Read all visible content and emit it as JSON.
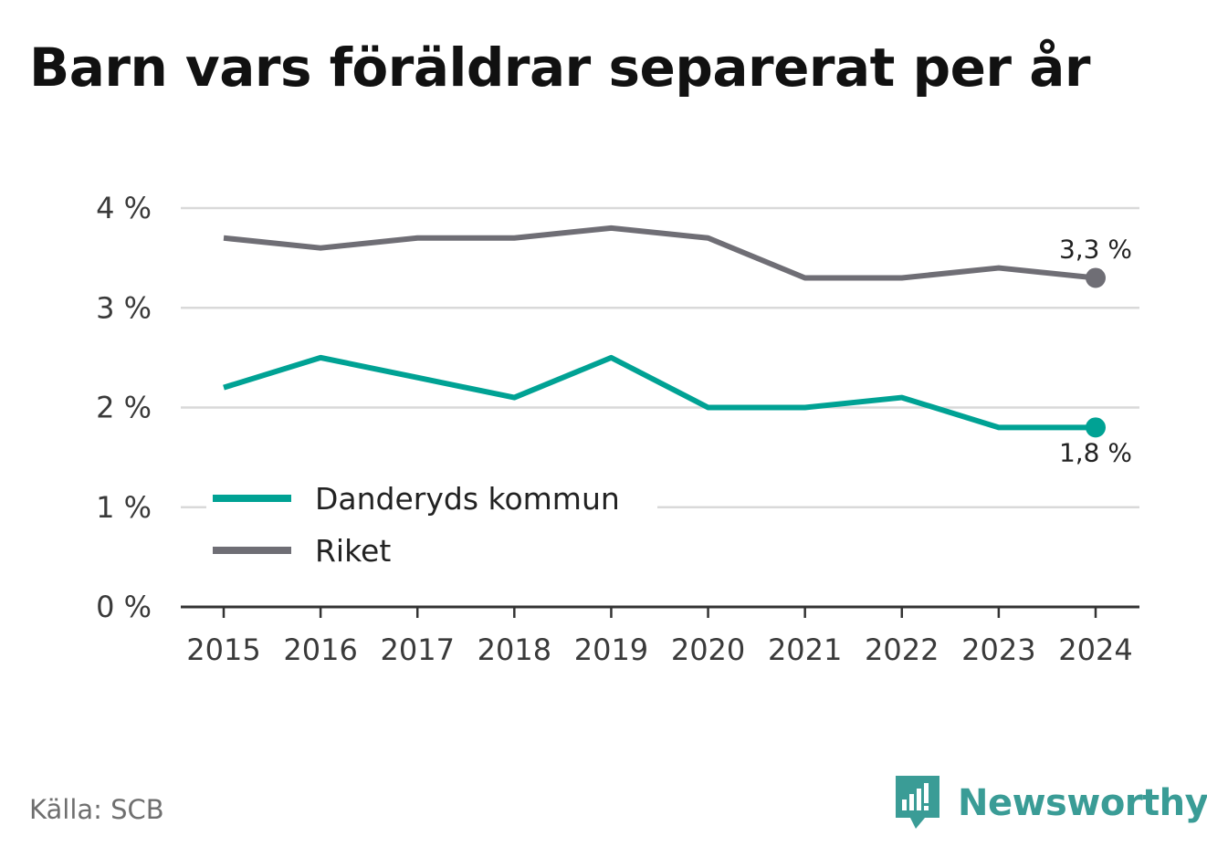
{
  "title": "Barn vars föräldrar separerat per år",
  "source": "Källa: SCB",
  "brand": {
    "name": "Newsworthy",
    "icon": "newsworthy-logo-icon",
    "color": "#3a9c96"
  },
  "colors": {
    "danderyd": "#00a294",
    "riket": "#6f6e75",
    "grid": "#d9d9d9",
    "axis": "#333333"
  },
  "chart_data": {
    "type": "line",
    "title": "Barn vars föräldrar separerat per år",
    "x": [
      "2015",
      "2016",
      "2017",
      "2018",
      "2019",
      "2020",
      "2021",
      "2022",
      "2023",
      "2024"
    ],
    "ylim": [
      0,
      4
    ],
    "yticks": [
      0,
      1,
      2,
      3,
      4
    ],
    "ytick_labels": [
      "0 %",
      "1 %",
      "2 %",
      "3 %",
      "4 %"
    ],
    "grid": true,
    "legend_position": "bottom-left",
    "series": [
      {
        "name": "Danderyds kommun",
        "color": "#00a294",
        "values": [
          2.2,
          2.5,
          2.3,
          2.1,
          2.5,
          2.0,
          2.0,
          2.1,
          1.8,
          1.8
        ],
        "end_label": "1,8 %"
      },
      {
        "name": "Riket",
        "color": "#6f6e75",
        "values": [
          3.7,
          3.6,
          3.7,
          3.7,
          3.8,
          3.7,
          3.3,
          3.3,
          3.4,
          3.3
        ],
        "end_label": "3,3 %"
      }
    ]
  }
}
